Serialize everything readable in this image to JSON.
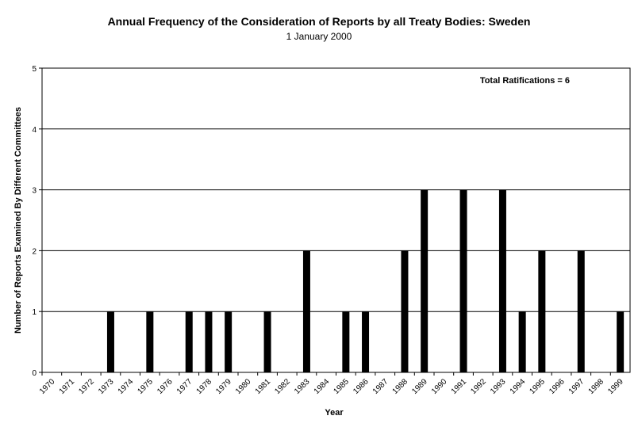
{
  "chart_data": {
    "type": "bar",
    "title": "Annual Frequency of the Consideration of Reports by all Treaty Bodies: Sweden",
    "subtitle": "1 January 2000",
    "xlabel": "Year",
    "ylabel": "Number of Reports Examined By Different Committees",
    "annotation": "Total Ratifications = 6",
    "ylim": [
      0,
      5
    ],
    "yticks": [
      "0",
      "1",
      "2",
      "3",
      "4",
      "5"
    ],
    "grid": true,
    "categories": [
      "1970",
      "1971",
      "1972",
      "1973",
      "1974",
      "1975",
      "1976",
      "1977",
      "1978",
      "1979",
      "1980",
      "1981",
      "1982",
      "1983",
      "1984",
      "1985",
      "1986",
      "1987",
      "1988",
      "1989",
      "1990",
      "1991",
      "1992",
      "1993",
      "1994",
      "1995",
      "1996",
      "1997",
      "1998",
      "1999"
    ],
    "values": [
      0,
      0,
      0,
      1,
      0,
      1,
      0,
      1,
      1,
      1,
      0,
      1,
      0,
      2,
      0,
      1,
      1,
      0,
      2,
      3,
      0,
      3,
      0,
      3,
      1,
      2,
      0,
      2,
      0,
      1
    ],
    "colors": {
      "bar": "#000000",
      "grid": "#000000",
      "axis": "#000000"
    }
  }
}
